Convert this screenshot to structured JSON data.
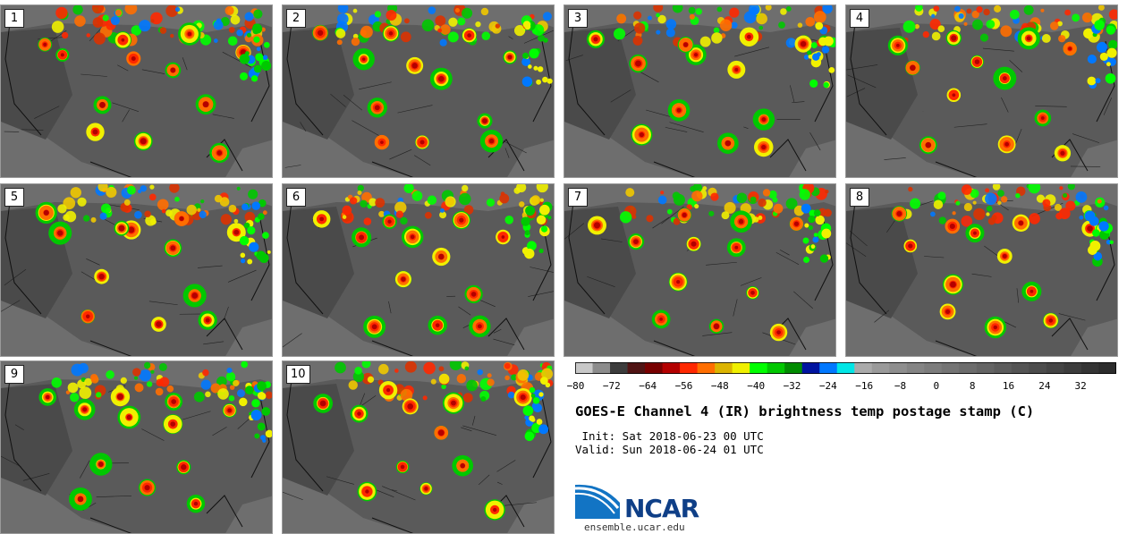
{
  "panels": [
    "1",
    "2",
    "3",
    "4",
    "5",
    "6",
    "7",
    "8",
    "9",
    "10"
  ],
  "colorbar": {
    "colors": [
      "#c8c8c8",
      "#8c8c8c",
      "#3c3c3c",
      "#501414",
      "#780000",
      "#b40000",
      "#ff2800",
      "#ff6e00",
      "#dcb400",
      "#f0f000",
      "#00ff00",
      "#00c800",
      "#008c00",
      "#0014a0",
      "#0078ff",
      "#00e6e6",
      "#aaaaaa",
      "#9a9a9a",
      "#8e8e8e",
      "#848484",
      "#7c7c7c",
      "#747474",
      "#6c6c6c",
      "#646464",
      "#5c5c5c",
      "#545454",
      "#4c4c4c",
      "#444444",
      "#3c3c3c",
      "#343434",
      "#2c2c2c"
    ],
    "ticks": [
      "−80",
      "−72",
      "−64",
      "−56",
      "−48",
      "−40",
      "−32",
      "−24",
      "−16",
      "−8",
      "0",
      "8",
      "16",
      "24",
      "32"
    ]
  },
  "title": "GOES-E Channel 4 (IR) brightness temp postage stamp (C)",
  "init": " Init: Sat 2018-06-23 00 UTC",
  "valid": "Valid: Sun 2018-06-24 01 UTC",
  "logo_text": "NCAR",
  "site": "ensemble.ucar.edu"
}
